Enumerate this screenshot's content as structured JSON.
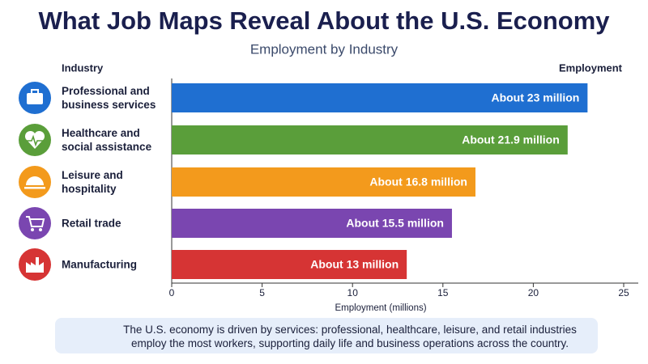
{
  "chart_data": {
    "type": "hbar",
    "title": "What Job Maps Reveal About the U.S. Economy",
    "subtitle": "Employment by Industry",
    "category_axis_label": "Industry",
    "value_axis_label": "Employment",
    "x_axis_title": "Employment (millions)",
    "categories": [
      "Professional and business services",
      "Healthcare and social assistance",
      "Leisure and hospitality",
      "Retail trade",
      "Manufacturing"
    ],
    "values": [
      23,
      21.9,
      16.8,
      15.5,
      13
    ],
    "value_labels": [
      "About 23 million",
      "About 21.9 million",
      "About 16.8 million",
      "About 15.5 million",
      "About 13 million"
    ],
    "colors": [
      "#1f6fd1",
      "#5a9e3a",
      "#f39a1c",
      "#7a46b0",
      "#d63434"
    ],
    "xlim": [
      0,
      25
    ],
    "xticks": [
      0,
      5,
      10,
      15,
      20,
      25
    ],
    "note": "The U.S. economy is driven by services: professional, healthcare, leisure, and retail industries employ the most workers, supporting daily life and business operations across the country."
  }
}
